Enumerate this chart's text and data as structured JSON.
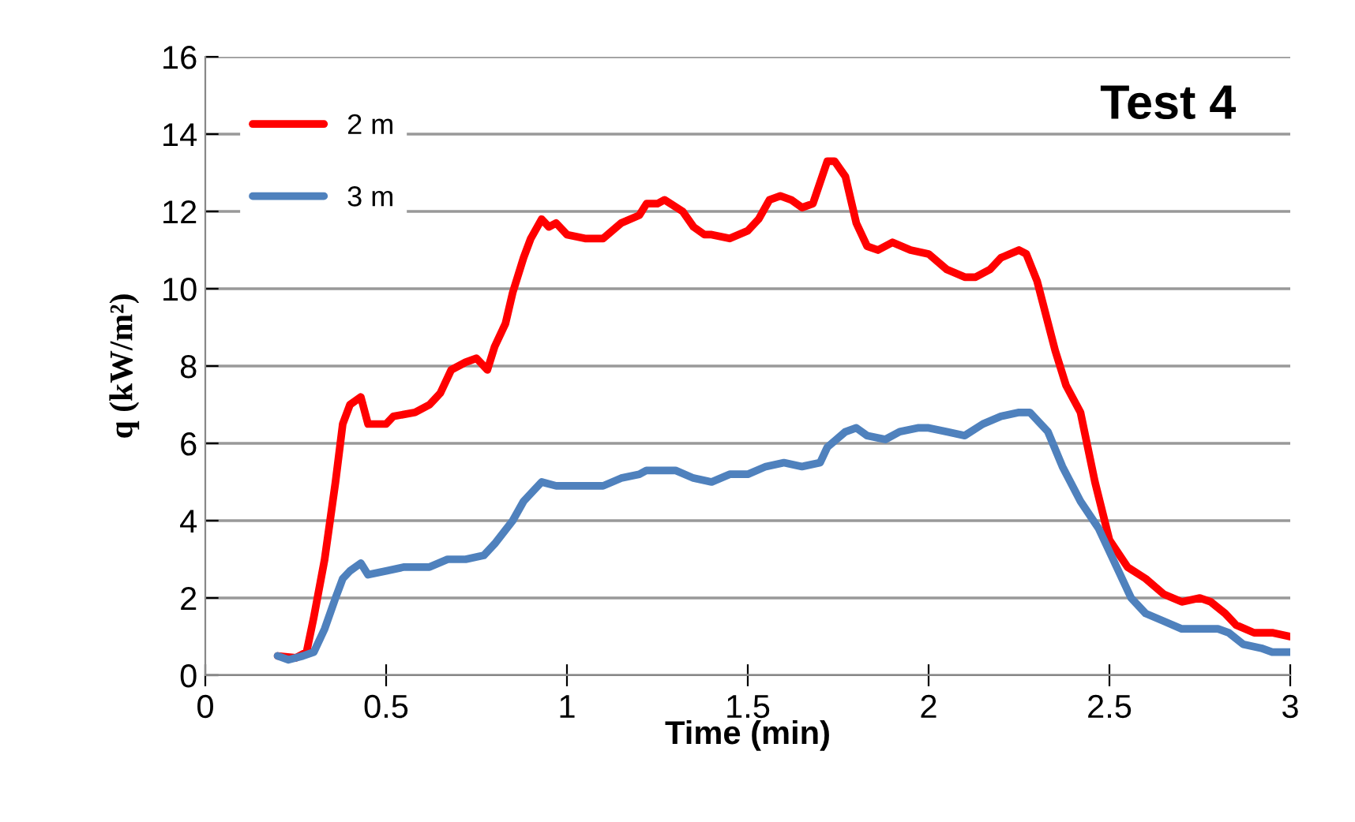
{
  "chart_data": {
    "type": "line",
    "title": "Test 4",
    "xlabel": "Time (min)",
    "ylabel": "q (kW/m²)",
    "xlim": [
      0,
      3
    ],
    "xticks": [
      0,
      0.5,
      1,
      1.5,
      2,
      2.5,
      3
    ],
    "ylim": [
      0,
      16
    ],
    "yticks": [
      0,
      2,
      4,
      6,
      8,
      10,
      12,
      14,
      16
    ],
    "grid": "y",
    "legend": "top left",
    "marker": "none",
    "line_style": "solid",
    "series": [
      {
        "name": "2 m",
        "color": "#ff0000",
        "x": [
          0.2,
          0.25,
          0.28,
          0.3,
          0.33,
          0.36,
          0.38,
          0.4,
          0.43,
          0.45,
          0.5,
          0.52,
          0.58,
          0.62,
          0.65,
          0.68,
          0.72,
          0.75,
          0.78,
          0.8,
          0.83,
          0.85,
          0.88,
          0.9,
          0.93,
          0.95,
          0.97,
          1.0,
          1.05,
          1.1,
          1.15,
          1.2,
          1.22,
          1.25,
          1.27,
          1.32,
          1.35,
          1.38,
          1.4,
          1.45,
          1.5,
          1.53,
          1.56,
          1.59,
          1.62,
          1.65,
          1.68,
          1.72,
          1.74,
          1.77,
          1.8,
          1.83,
          1.86,
          1.9,
          1.95,
          2.0,
          2.05,
          2.1,
          2.13,
          2.17,
          2.2,
          2.25,
          2.27,
          2.3,
          2.35,
          2.38,
          2.42,
          2.46,
          2.5,
          2.55,
          2.6,
          2.65,
          2.7,
          2.75,
          2.78,
          2.82,
          2.85,
          2.9,
          2.95,
          3.0
        ],
        "values": [
          0.5,
          0.45,
          0.6,
          1.5,
          3.0,
          5.0,
          6.5,
          7.0,
          7.2,
          6.5,
          6.5,
          6.7,
          6.8,
          7.0,
          7.3,
          7.9,
          8.1,
          8.2,
          7.9,
          8.5,
          9.1,
          9.9,
          10.8,
          11.3,
          11.8,
          11.6,
          11.7,
          11.4,
          11.3,
          11.3,
          11.7,
          11.9,
          12.2,
          12.2,
          12.3,
          12.0,
          11.6,
          11.4,
          11.4,
          11.3,
          11.5,
          11.8,
          12.3,
          12.4,
          12.3,
          12.1,
          12.2,
          13.3,
          13.3,
          12.9,
          11.7,
          11.1,
          11.0,
          11.2,
          11.0,
          10.9,
          10.5,
          10.3,
          10.3,
          10.5,
          10.8,
          11.0,
          10.9,
          10.2,
          8.4,
          7.5,
          6.8,
          5.0,
          3.5,
          2.8,
          2.5,
          2.1,
          1.9,
          2.0,
          1.9,
          1.6,
          1.3,
          1.1,
          1.1,
          1.0
        ]
      },
      {
        "name": "3 m",
        "color": "#4f81bd",
        "x": [
          0.2,
          0.23,
          0.27,
          0.3,
          0.33,
          0.36,
          0.38,
          0.4,
          0.43,
          0.45,
          0.5,
          0.55,
          0.62,
          0.67,
          0.72,
          0.77,
          0.8,
          0.85,
          0.88,
          0.91,
          0.93,
          0.97,
          1.0,
          1.05,
          1.1,
          1.15,
          1.2,
          1.22,
          1.3,
          1.35,
          1.4,
          1.45,
          1.5,
          1.55,
          1.6,
          1.65,
          1.7,
          1.72,
          1.77,
          1.8,
          1.83,
          1.88,
          1.92,
          1.97,
          2.0,
          2.05,
          2.1,
          2.15,
          2.2,
          2.25,
          2.28,
          2.33,
          2.37,
          2.42,
          2.47,
          2.52,
          2.56,
          2.6,
          2.65,
          2.7,
          2.8,
          2.83,
          2.87,
          2.92,
          2.95,
          3.0
        ],
        "values": [
          0.5,
          0.4,
          0.5,
          0.6,
          1.2,
          2.0,
          2.5,
          2.7,
          2.9,
          2.6,
          2.7,
          2.8,
          2.8,
          3.0,
          3.0,
          3.1,
          3.4,
          4.0,
          4.5,
          4.8,
          5.0,
          4.9,
          4.9,
          4.9,
          4.9,
          5.1,
          5.2,
          5.3,
          5.3,
          5.1,
          5.0,
          5.2,
          5.2,
          5.4,
          5.5,
          5.4,
          5.5,
          5.9,
          6.3,
          6.4,
          6.2,
          6.1,
          6.3,
          6.4,
          6.4,
          6.3,
          6.2,
          6.5,
          6.7,
          6.8,
          6.8,
          6.3,
          5.4,
          4.5,
          3.8,
          2.8,
          2.0,
          1.6,
          1.4,
          1.2,
          1.2,
          1.1,
          0.8,
          0.7,
          0.6,
          0.6
        ]
      }
    ]
  }
}
